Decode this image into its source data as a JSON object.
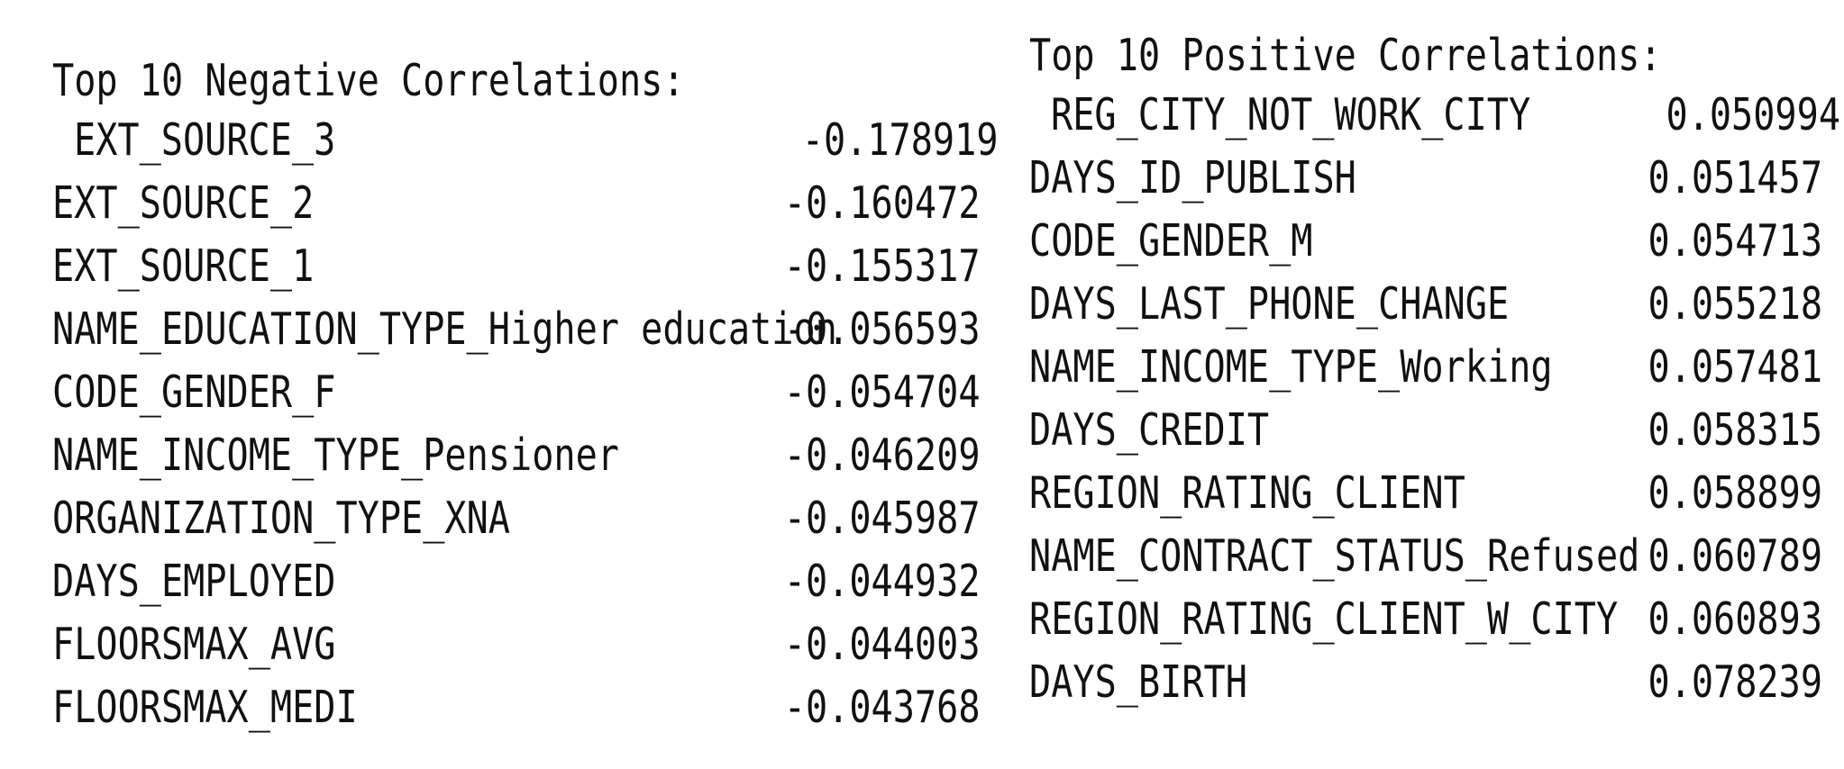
{
  "negative": {
    "title": "Top 10 Negative Correlations:",
    "rows": [
      {
        "label": "EXT_SOURCE_3",
        "value": "-0.178919"
      },
      {
        "label": "EXT_SOURCE_2",
        "value": "-0.160472"
      },
      {
        "label": "EXT_SOURCE_1",
        "value": "-0.155317"
      },
      {
        "label": "NAME_EDUCATION_TYPE_Higher education",
        "value": "-0.056593"
      },
      {
        "label": "CODE_GENDER_F",
        "value": "-0.054704"
      },
      {
        "label": "NAME_INCOME_TYPE_Pensioner",
        "value": "-0.046209"
      },
      {
        "label": "ORGANIZATION_TYPE_XNA",
        "value": "-0.045987"
      },
      {
        "label": "DAYS_EMPLOYED",
        "value": "-0.044932"
      },
      {
        "label": "FLOORSMAX_AVG",
        "value": "-0.044003"
      },
      {
        "label": "FLOORSMAX_MEDI",
        "value": "-0.043768"
      }
    ]
  },
  "positive": {
    "title": "Top 10 Positive Correlations:",
    "rows": [
      {
        "label": "REG_CITY_NOT_WORK_CITY",
        "value": "0.050994"
      },
      {
        "label": "DAYS_ID_PUBLISH",
        "value": "0.051457"
      },
      {
        "label": "CODE_GENDER_M",
        "value": "0.054713"
      },
      {
        "label": "DAYS_LAST_PHONE_CHANGE",
        "value": "0.055218"
      },
      {
        "label": "NAME_INCOME_TYPE_Working",
        "value": "0.057481"
      },
      {
        "label": "DAYS_CREDIT",
        "value": "0.058315"
      },
      {
        "label": "REGION_RATING_CLIENT",
        "value": "0.058899"
      },
      {
        "label": "NAME_CONTRACT_STATUS_Refused",
        "value": "0.060789"
      },
      {
        "label": "REGION_RATING_CLIENT_W_CITY",
        "value": "0.060893"
      },
      {
        "label": "DAYS_BIRTH",
        "value": "0.078239"
      }
    ]
  }
}
